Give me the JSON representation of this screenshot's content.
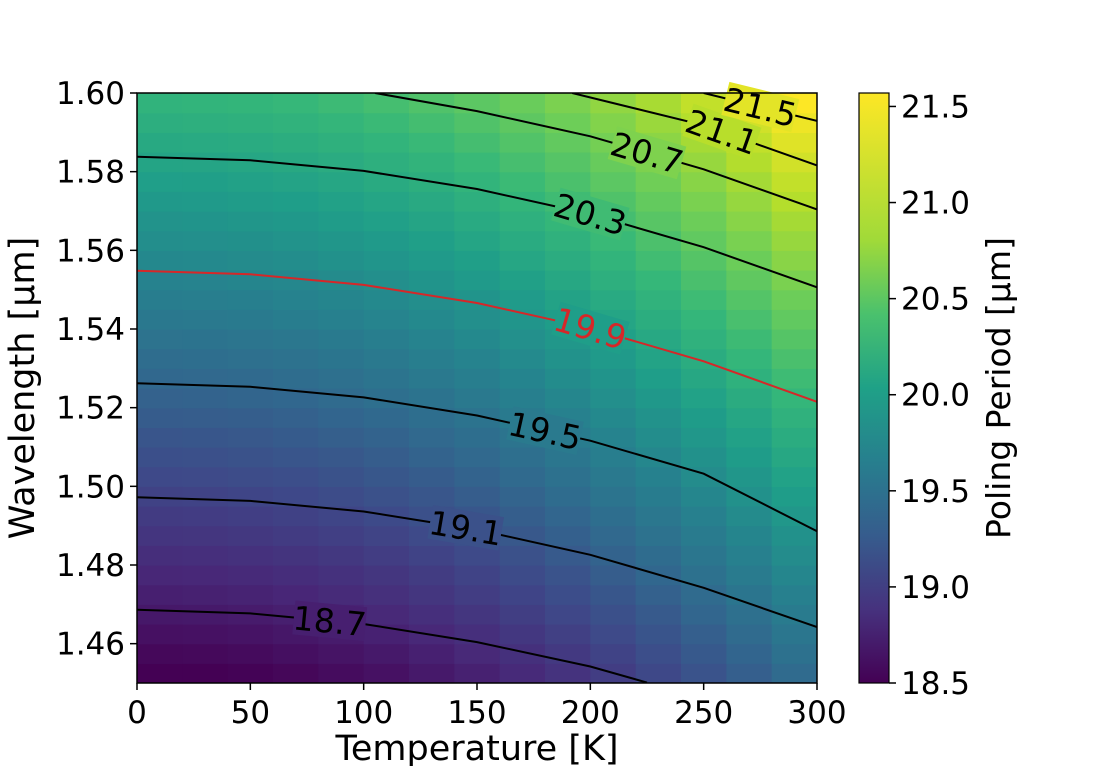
{
  "chart_data": {
    "type": "heatmap",
    "xlabel": "Temperature [K]",
    "ylabel": "Wavelength [μm]",
    "colorbar_label": "Poling Period [μm]",
    "colormap": "viridis",
    "xlim": [
      0,
      300
    ],
    "ylim": [
      1.45,
      1.6
    ],
    "clim": [
      18.5,
      21.57
    ],
    "x_ticks": [
      0,
      50,
      100,
      150,
      200,
      250,
      300
    ],
    "x_tick_labels": [
      "0",
      "50",
      "100",
      "150",
      "200",
      "250",
      "300"
    ],
    "y_ticks": [
      1.46,
      1.48,
      1.5,
      1.52,
      1.54,
      1.56,
      1.58,
      1.6
    ],
    "y_tick_labels": [
      "1.46",
      "1.48",
      "1.50",
      "1.52",
      "1.54",
      "1.56",
      "1.58",
      "1.60"
    ],
    "colorbar_ticks": [
      18.5,
      19.0,
      19.5,
      20.0,
      20.5,
      21.0,
      21.5
    ],
    "colorbar_tick_labels": [
      "18.5",
      "19.0",
      "19.5",
      "20.0",
      "20.5",
      "21.0",
      "21.5"
    ],
    "contours": [
      {
        "level": 18.7,
        "label": "18.7",
        "color": "#000000",
        "label_at": 85,
        "points": [
          [
            0,
            1.4686
          ],
          [
            50,
            1.4677
          ],
          [
            100,
            1.465
          ],
          [
            150,
            1.4604
          ],
          [
            200,
            1.4542
          ],
          [
            225,
            1.4501
          ]
        ]
      },
      {
        "level": 19.1,
        "label": "19.1",
        "color": "#000000",
        "label_at": 145,
        "points": [
          [
            0,
            1.4972
          ],
          [
            50,
            1.4963
          ],
          [
            100,
            1.4936
          ],
          [
            150,
            1.489
          ],
          [
            200,
            1.4826
          ],
          [
            250,
            1.4742
          ],
          [
            300,
            1.4642
          ]
        ]
      },
      {
        "level": 19.5,
        "label": "19.5",
        "color": "#000000",
        "label_at": 180,
        "points": [
          [
            0,
            1.5262
          ],
          [
            50,
            1.5253
          ],
          [
            100,
            1.5226
          ],
          [
            150,
            1.518
          ],
          [
            200,
            1.5116
          ],
          [
            250,
            1.5032
          ],
          [
            300,
            1.4886
          ]
        ]
      },
      {
        "level": 19.9,
        "label": "19.9",
        "color": "#d62728",
        "label_at": 200,
        "points": [
          [
            0,
            1.5548
          ],
          [
            50,
            1.5539
          ],
          [
            100,
            1.5512
          ],
          [
            150,
            1.5466
          ],
          [
            200,
            1.5402
          ],
          [
            250,
            1.5318
          ],
          [
            300,
            1.5215
          ]
        ]
      },
      {
        "level": 20.3,
        "label": "20.3",
        "color": "#000000",
        "label_at": 200,
        "points": [
          [
            0,
            1.5838
          ],
          [
            50,
            1.5829
          ],
          [
            100,
            1.5802
          ],
          [
            150,
            1.5756
          ],
          [
            200,
            1.5692
          ],
          [
            250,
            1.5608
          ],
          [
            300,
            1.5506
          ]
        ]
      },
      {
        "level": 20.7,
        "label": "20.7",
        "color": "#000000",
        "label_at": 225,
        "points": [
          [
            105,
            1.6
          ],
          [
            150,
            1.5954
          ],
          [
            200,
            1.589
          ],
          [
            250,
            1.5806
          ],
          [
            300,
            1.5704
          ]
        ]
      },
      {
        "level": 21.1,
        "label": "21.1",
        "color": "#000000",
        "label_at": 258,
        "points": [
          [
            192,
            1.6
          ],
          [
            250,
            1.5918
          ],
          [
            300,
            1.5816
          ]
        ]
      },
      {
        "level": 21.5,
        "label": "21.5",
        "color": "#000000",
        "label_at": 275,
        "points": [
          [
            250,
            1.6
          ],
          [
            300,
            1.5929
          ]
        ]
      }
    ]
  }
}
